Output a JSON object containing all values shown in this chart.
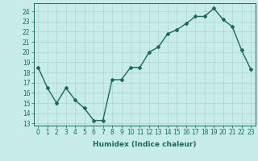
{
  "x": [
    0,
    1,
    2,
    3,
    4,
    5,
    6,
    7,
    8,
    9,
    10,
    11,
    12,
    13,
    14,
    15,
    16,
    17,
    18,
    19,
    20,
    21,
    22,
    23
  ],
  "y": [
    18.5,
    16.5,
    15.0,
    16.5,
    15.3,
    14.5,
    13.3,
    13.3,
    17.3,
    17.3,
    18.5,
    18.5,
    20.0,
    20.5,
    21.8,
    22.2,
    22.8,
    23.5,
    23.5,
    24.3,
    23.2,
    22.5,
    20.2,
    18.3
  ],
  "line_color": "#1a6b5a",
  "marker": "D",
  "markersize": 2,
  "bg_color": "#c8ede8",
  "grid_color": "#aed4cc",
  "xlabel": "Humidex (Indice chaleur)",
  "ylabel_ticks": [
    13,
    14,
    15,
    16,
    17,
    18,
    19,
    20,
    21,
    22,
    23,
    24
  ],
  "xlim": [
    -0.5,
    23.5
  ],
  "ylim": [
    12.8,
    24.8
  ],
  "font_color": "#1a6b5a",
  "linewidth": 1.0,
  "tick_fontsize": 5.5,
  "xlabel_fontsize": 6.5
}
